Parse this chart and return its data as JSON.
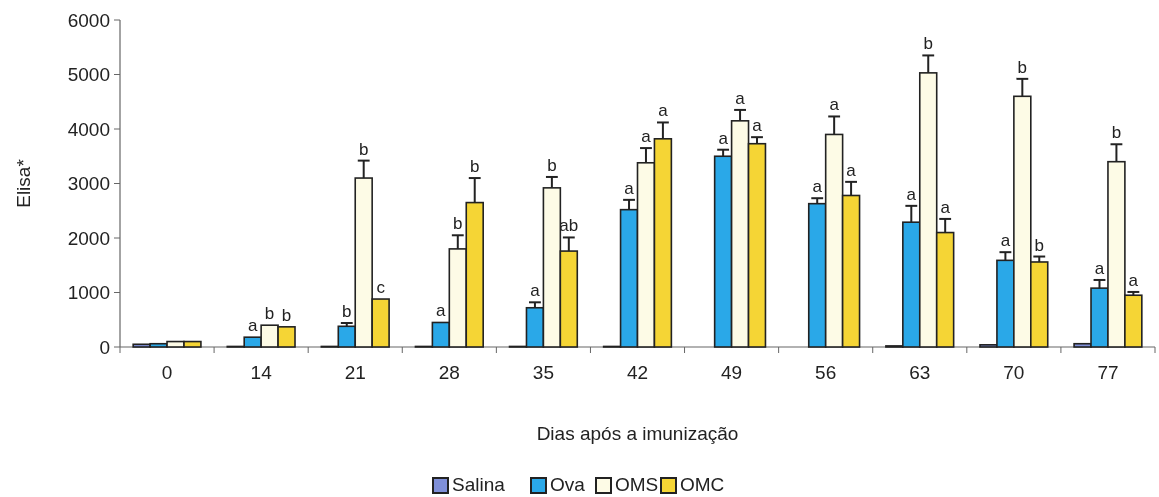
{
  "chart_data": {
    "type": "bar",
    "xlabel": "Dias após a imunização",
    "ylabel": "Elisa*",
    "categories": [
      "0",
      "14",
      "21",
      "28",
      "35",
      "42",
      "49",
      "56",
      "63",
      "70",
      "77"
    ],
    "ylim": [
      0,
      6000
    ],
    "yticks": [
      0,
      1000,
      2000,
      3000,
      4000,
      5000,
      6000
    ],
    "grid": false,
    "legend": "bottom",
    "series": [
      {
        "name": "Salina",
        "color": "#7f8fd8",
        "values": [
          50,
          10,
          10,
          10,
          10,
          10,
          0,
          0,
          20,
          40,
          60
        ]
      },
      {
        "name": "Ova",
        "color": "#2aa8e8",
        "values": [
          60,
          180,
          380,
          450,
          720,
          2520,
          3500,
          2630,
          2290,
          1590,
          1080
        ],
        "errors": [
          null,
          null,
          [
            380,
            440
          ],
          null,
          [
            720,
            820
          ],
          [
            2520,
            2700
          ],
          [
            3500,
            3620
          ],
          [
            2630,
            2730
          ],
          [
            2290,
            2590
          ],
          [
            1590,
            1740
          ],
          [
            1080,
            1230
          ]
        ],
        "value_labels": [
          null,
          "a",
          "b",
          "a",
          "a",
          "a",
          "a",
          "a",
          "a",
          "a",
          "a"
        ]
      },
      {
        "name": "OMS",
        "color": "#fdfbe6",
        "values": [
          100,
          400,
          3100,
          1800,
          2920,
          3380,
          4150,
          3900,
          5030,
          4600,
          3400
        ],
        "errors": [
          null,
          null,
          [
            3100,
            3420
          ],
          [
            1800,
            2050
          ],
          [
            2920,
            3120
          ],
          [
            3380,
            3650
          ],
          [
            4150,
            4350
          ],
          [
            3900,
            4230
          ],
          [
            5030,
            5350
          ],
          [
            4600,
            4920
          ],
          [
            3400,
            3720
          ]
        ],
        "value_labels": [
          null,
          "b",
          "b",
          "b",
          "b",
          "a",
          "a",
          "a",
          "b",
          "b",
          "b"
        ]
      },
      {
        "name": "OMC",
        "color": "#f5d535",
        "values": [
          100,
          370,
          880,
          2650,
          1760,
          3820,
          3730,
          2780,
          2100,
          1560,
          950
        ],
        "errors": [
          null,
          null,
          null,
          [
            2650,
            3100
          ],
          [
            1760,
            2010
          ],
          [
            3820,
            4120
          ],
          [
            3730,
            3850
          ],
          [
            2780,
            3030
          ],
          [
            2100,
            2350
          ],
          [
            1560,
            1660
          ],
          [
            950,
            1010
          ]
        ],
        "value_labels": [
          null,
          "b",
          "c",
          "b",
          "ab",
          "a",
          "a",
          "a",
          "a",
          "b",
          "a"
        ]
      }
    ]
  }
}
